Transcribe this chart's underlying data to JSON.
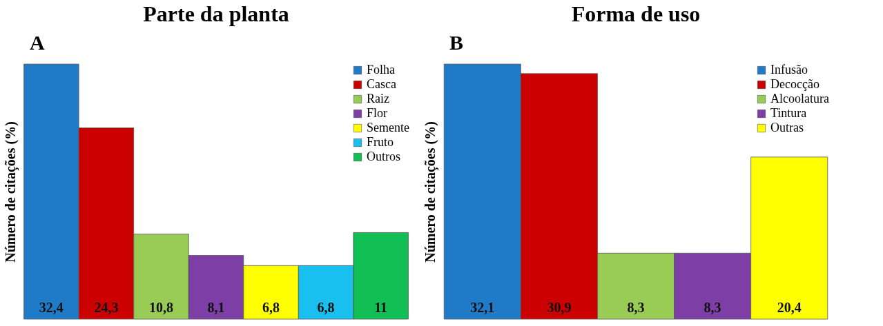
{
  "chart_data": [
    {
      "type": "bar",
      "title": "Parte da planta",
      "ylabel": "Número de citações (%)",
      "annotations": [
        "A"
      ],
      "categories": [
        null
      ],
      "legend": "top right",
      "series": [
        {
          "name": "Folha",
          "color": "#1f7bc8",
          "values": [
            32.4
          ],
          "value_labels": [
            "32,4"
          ]
        },
        {
          "name": "Casca",
          "color": "#cc0000",
          "values": [
            24.3
          ],
          "value_labels": [
            "24,3"
          ]
        },
        {
          "name": "Raiz",
          "color": "#99cc55",
          "values": [
            10.8
          ],
          "value_labels": [
            "10,8"
          ]
        },
        {
          "name": "Flor",
          "color": "#7d3fa6",
          "values": [
            8.1
          ],
          "value_labels": [
            "8,1"
          ]
        },
        {
          "name": "Semente",
          "color": "#ffff00",
          "values": [
            6.8
          ],
          "value_labels": [
            "6,8"
          ]
        },
        {
          "name": "Fruto",
          "color": "#19bfef",
          "values": [
            6.8
          ],
          "value_labels": [
            "6,8"
          ]
        },
        {
          "name": "Outros",
          "color": "#12bf55",
          "values": [
            11
          ],
          "value_labels": [
            "11"
          ]
        }
      ]
    },
    {
      "type": "bar",
      "title": "Forma de uso",
      "ylabel": "Número de citações (%)",
      "annotations": [
        "B"
      ],
      "categories": [
        null
      ],
      "legend": "top right",
      "series": [
        {
          "name": "Infusão",
          "color": "#1f7bc8",
          "values": [
            32.1
          ],
          "value_labels": [
            "32,1"
          ]
        },
        {
          "name": "Decocção",
          "color": "#cc0000",
          "values": [
            30.9
          ],
          "value_labels": [
            "30,9"
          ]
        },
        {
          "name": "Alcoolatura",
          "color": "#99cc55",
          "values": [
            8.3
          ],
          "value_labels": [
            "8,3"
          ]
        },
        {
          "name": "Tintura",
          "color": "#7d3fa6",
          "values": [
            8.3
          ],
          "value_labels": [
            "8,3"
          ]
        },
        {
          "name": "Outras",
          "color": "#ffff00",
          "values": [
            20.4
          ],
          "value_labels": [
            "20,4"
          ]
        }
      ]
    }
  ]
}
